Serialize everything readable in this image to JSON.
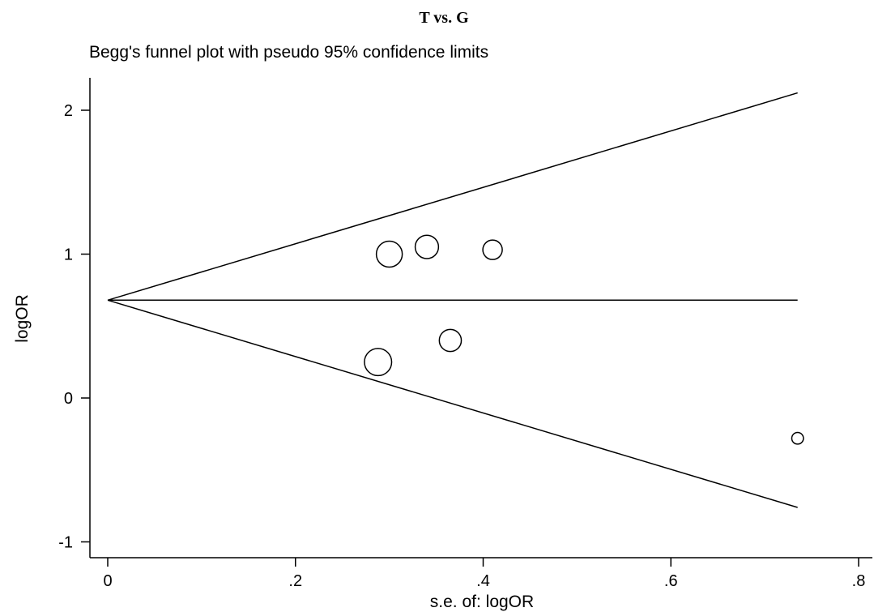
{
  "chart_data": {
    "type": "scatter",
    "title": "T vs. G",
    "subtitle": "Begg's funnel plot with pseudo 95% confidence limits",
    "xlabel": "s.e. of: logOR",
    "ylabel": "logOR",
    "xlim": [
      -0.01,
      0.81
    ],
    "ylim": [
      -1.1,
      2.2
    ],
    "x_ticks": [
      {
        "value": 0,
        "label": "0"
      },
      {
        "value": 0.2,
        "label": ".2"
      },
      {
        "value": 0.4,
        "label": ".4"
      },
      {
        "value": 0.6,
        "label": ".6"
      },
      {
        "value": 0.8,
        "label": ".8"
      }
    ],
    "y_ticks": [
      {
        "value": -1,
        "label": "-1"
      },
      {
        "value": 0,
        "label": "0"
      },
      {
        "value": 1,
        "label": "1"
      },
      {
        "value": 2,
        "label": "2"
      }
    ],
    "pooled_logOR": 0.68,
    "funnel_max_se": 0.735,
    "points": [
      {
        "x": 0.3,
        "y": 1.0,
        "weight": 1.0
      },
      {
        "x": 0.34,
        "y": 1.05,
        "weight": 0.9
      },
      {
        "x": 0.41,
        "y": 1.03,
        "weight": 0.75
      },
      {
        "x": 0.365,
        "y": 0.4,
        "weight": 0.85
      },
      {
        "x": 0.288,
        "y": 0.25,
        "weight": 1.05
      },
      {
        "x": 0.735,
        "y": -0.28,
        "weight": 0.45
      }
    ],
    "grid": false,
    "legend": "none",
    "line_color": "#000000",
    "marker_color": "#000000"
  }
}
